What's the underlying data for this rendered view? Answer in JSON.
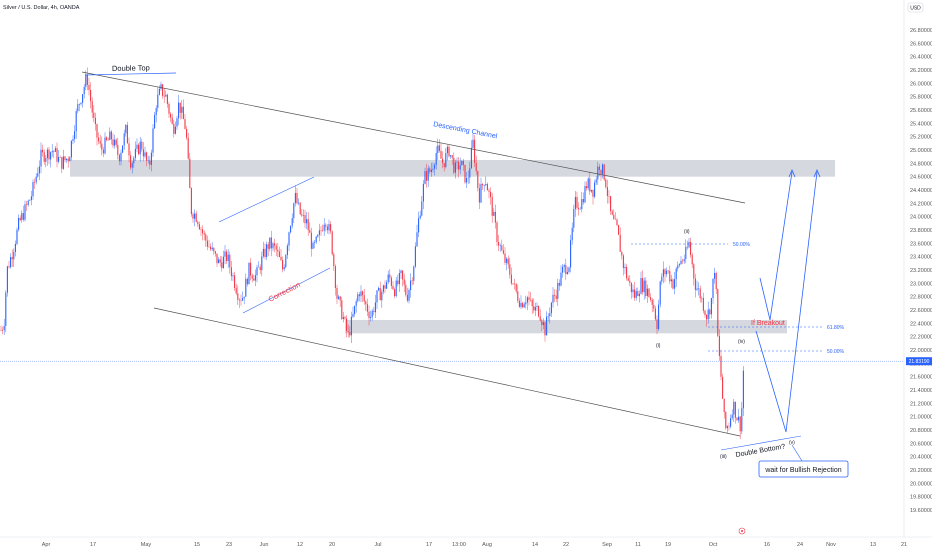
{
  "header": {
    "symbol": "Silver / U.S. Dollar, 4h, OANDA",
    "currency": "USD"
  },
  "colors": {
    "up": "#2962ff",
    "down": "#f23645",
    "zone": "#d1d4dc",
    "annotation_blue": "#2962ff",
    "annotation_red": "#f23645",
    "price_line": "#2962ff"
  },
  "chart_data": {
    "type": "candlestick",
    "symbol": "Silver / U.S. Dollar",
    "interval": "4h",
    "source": "OANDA",
    "ylim": [
      19.5,
      26.85
    ],
    "y_ticks": [
      "19.60000",
      "19.80000",
      "20.00000",
      "20.20000",
      "20.40000",
      "20.60000",
      "20.80000",
      "21.00000",
      "21.20000",
      "21.40000",
      "21.60000",
      "21.80000",
      "22.00000",
      "22.20000",
      "22.40000",
      "22.60000",
      "22.80000",
      "23.00000",
      "23.20000",
      "23.40000",
      "23.60000",
      "23.80000",
      "24.00000",
      "24.20000",
      "24.40000",
      "24.60000",
      "24.80000",
      "25.00000",
      "25.20000",
      "25.40000",
      "25.60000",
      "25.80000",
      "26.00000",
      "26.20000",
      "26.40000",
      "26.60000",
      "26.80000"
    ],
    "x_ticks": [
      "Apr",
      "17",
      "May",
      "15",
      "23",
      "Jun",
      "12",
      "20",
      "Jul",
      "17",
      "13:00",
      "Aug",
      "14",
      "22",
      "Sep",
      "11",
      "19",
      "Oct",
      "16",
      "24",
      "Nov",
      "13",
      "21"
    ],
    "last_price": "21.83190",
    "path": [
      {
        "t": 0,
        "p": 22.3
      },
      {
        "t": 3,
        "p": 22.4
      },
      {
        "t": 6,
        "p": 23.2
      },
      {
        "t": 12,
        "p": 23.5
      },
      {
        "t": 18,
        "p": 23.9
      },
      {
        "t": 24,
        "p": 24.1
      },
      {
        "t": 30,
        "p": 24.3
      },
      {
        "t": 40,
        "p": 24.9
      },
      {
        "t": 52,
        "p": 25.0
      },
      {
        "t": 60,
        "p": 24.8
      },
      {
        "t": 68,
        "p": 24.9
      },
      {
        "t": 76,
        "p": 25.6
      },
      {
        "t": 80,
        "p": 25.8
      },
      {
        "t": 86,
        "p": 26.1
      },
      {
        "t": 94,
        "p": 25.3
      },
      {
        "t": 100,
        "p": 25.0
      },
      {
        "t": 110,
        "p": 25.2
      },
      {
        "t": 118,
        "p": 24.9
      },
      {
        "t": 125,
        "p": 25.3
      },
      {
        "t": 130,
        "p": 24.8
      },
      {
        "t": 140,
        "p": 25.1
      },
      {
        "t": 148,
        "p": 24.7
      },
      {
        "t": 155,
        "p": 25.7
      },
      {
        "t": 160,
        "p": 25.9
      },
      {
        "t": 165,
        "p": 25.8
      },
      {
        "t": 172,
        "p": 25.3
      },
      {
        "t": 178,
        "p": 25.7
      },
      {
        "t": 185,
        "p": 25.3
      },
      {
        "t": 190,
        "p": 24.1
      },
      {
        "t": 196,
        "p": 24.0
      },
      {
        "t": 203,
        "p": 23.7
      },
      {
        "t": 210,
        "p": 23.5
      },
      {
        "t": 218,
        "p": 23.3
      },
      {
        "t": 226,
        "p": 23.4
      },
      {
        "t": 232,
        "p": 23.1
      },
      {
        "t": 238,
        "p": 22.8
      },
      {
        "t": 242,
        "p": 22.8
      },
      {
        "t": 248,
        "p": 23.2
      },
      {
        "t": 255,
        "p": 23.1
      },
      {
        "t": 262,
        "p": 23.4
      },
      {
        "t": 268,
        "p": 23.6
      },
      {
        "t": 275,
        "p": 23.5
      },
      {
        "t": 282,
        "p": 23.2
      },
      {
        "t": 288,
        "p": 23.8
      },
      {
        "t": 294,
        "p": 24.3
      },
      {
        "t": 300,
        "p": 24.0
      },
      {
        "t": 306,
        "p": 23.9
      },
      {
        "t": 312,
        "p": 23.5
      },
      {
        "t": 318,
        "p": 23.7
      },
      {
        "t": 324,
        "p": 24.0
      },
      {
        "t": 330,
        "p": 23.7
      },
      {
        "t": 336,
        "p": 22.8
      },
      {
        "t": 342,
        "p": 22.5
      },
      {
        "t": 347,
        "p": 22.2
      },
      {
        "t": 352,
        "p": 22.5
      },
      {
        "t": 358,
        "p": 22.9
      },
      {
        "t": 364,
        "p": 22.7
      },
      {
        "t": 370,
        "p": 22.5
      },
      {
        "t": 376,
        "p": 22.8
      },
      {
        "t": 382,
        "p": 22.9
      },
      {
        "t": 388,
        "p": 23.1
      },
      {
        "t": 394,
        "p": 22.9
      },
      {
        "t": 400,
        "p": 23.1
      },
      {
        "t": 406,
        "p": 22.8
      },
      {
        "t": 412,
        "p": 23.2
      },
      {
        "t": 418,
        "p": 24.0
      },
      {
        "t": 424,
        "p": 24.6
      },
      {
        "t": 430,
        "p": 24.7
      },
      {
        "t": 436,
        "p": 25.0
      },
      {
        "t": 442,
        "p": 24.8
      },
      {
        "t": 448,
        "p": 25.0
      },
      {
        "t": 454,
        "p": 24.7
      },
      {
        "t": 460,
        "p": 24.8
      },
      {
        "t": 466,
        "p": 24.5
      },
      {
        "t": 472,
        "p": 25.1
      },
      {
        "t": 478,
        "p": 24.3
      },
      {
        "t": 484,
        "p": 24.6
      },
      {
        "t": 490,
        "p": 24.2
      },
      {
        "t": 496,
        "p": 23.7
      },
      {
        "t": 502,
        "p": 23.4
      },
      {
        "t": 508,
        "p": 23.2
      },
      {
        "t": 514,
        "p": 22.9
      },
      {
        "t": 520,
        "p": 22.7
      },
      {
        "t": 526,
        "p": 22.8
      },
      {
        "t": 532,
        "p": 22.6
      },
      {
        "t": 538,
        "p": 22.6
      },
      {
        "t": 544,
        "p": 22.3
      },
      {
        "t": 550,
        "p": 22.7
      },
      {
        "t": 556,
        "p": 22.9
      },
      {
        "t": 562,
        "p": 23.2
      },
      {
        "t": 568,
        "p": 23.3
      },
      {
        "t": 574,
        "p": 24.2
      },
      {
        "t": 580,
        "p": 24.2
      },
      {
        "t": 586,
        "p": 24.5
      },
      {
        "t": 592,
        "p": 24.4
      },
      {
        "t": 598,
        "p": 24.8
      },
      {
        "t": 604,
        "p": 24.6
      },
      {
        "t": 610,
        "p": 24.0
      },
      {
        "t": 616,
        "p": 23.8
      },
      {
        "t": 622,
        "p": 23.3
      },
      {
        "t": 628,
        "p": 23.0
      },
      {
        "t": 634,
        "p": 22.8
      },
      {
        "t": 640,
        "p": 23.0
      },
      {
        "t": 646,
        "p": 22.9
      },
      {
        "t": 652,
        "p": 22.7
      },
      {
        "t": 656,
        "p": 22.4
      },
      {
        "t": 660,
        "p": 23.1
      },
      {
        "t": 666,
        "p": 23.2
      },
      {
        "t": 672,
        "p": 23.0
      },
      {
        "t": 678,
        "p": 23.3
      },
      {
        "t": 684,
        "p": 23.4
      },
      {
        "t": 688,
        "p": 23.6
      },
      {
        "t": 694,
        "p": 23.0
      },
      {
        "t": 700,
        "p": 22.8
      },
      {
        "t": 706,
        "p": 22.5
      },
      {
        "t": 710,
        "p": 22.7
      },
      {
        "t": 714,
        "p": 23.3
      },
      {
        "t": 717,
        "p": 22.1
      },
      {
        "t": 720,
        "p": 21.6
      },
      {
        "t": 724,
        "p": 20.8
      },
      {
        "t": 728,
        "p": 20.9
      },
      {
        "t": 732,
        "p": 21.2
      },
      {
        "t": 736,
        "p": 21.0
      },
      {
        "t": 740,
        "p": 20.85
      },
      {
        "t": 743,
        "p": 21.9
      },
      {
        "t": 744,
        "p": 21.83
      }
    ],
    "annotations": [
      {
        "text": "Double Top"
      },
      {
        "text": "Descending Channel"
      },
      {
        "text": "Correction"
      },
      {
        "text": "If Breakout"
      },
      {
        "text": "Double Bottom?"
      },
      {
        "text": "wait for Bullish Rejection"
      },
      {
        "text": "50.00%"
      },
      {
        "text": "61.80%"
      },
      {
        "text": "50.00%"
      },
      {
        "text": "(i)"
      },
      {
        "text": "(ii)"
      },
      {
        "text": "(iii)"
      },
      {
        "text": "(iv)"
      },
      {
        "text": "(v)"
      }
    ],
    "zones": [
      {
        "from": 24.6,
        "to": 24.85
      },
      {
        "from": 22.25,
        "to": 22.45
      }
    ]
  }
}
